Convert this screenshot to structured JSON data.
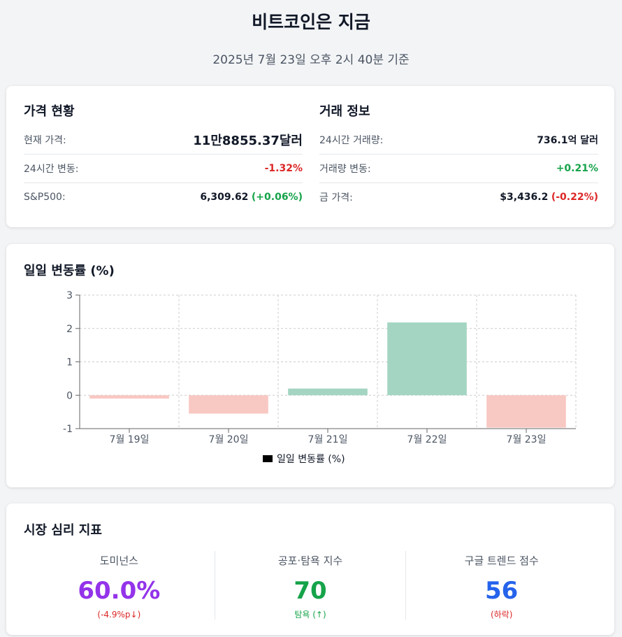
{
  "header": {
    "title": "비트코인은 지금",
    "subtitle": "2025년 7월 23일 오후 2시 40분 기준"
  },
  "price_status": {
    "title": "가격 현황",
    "rows": [
      {
        "label": "현재 가격:",
        "value": "11만8855.37달러"
      },
      {
        "label": "24시간 변동:",
        "value": "-1.32%"
      },
      {
        "label": "S&P500:",
        "value": "6,309.62",
        "change": "(+0.06%)"
      }
    ]
  },
  "trade_info": {
    "title": "거래 정보",
    "rows": [
      {
        "label": "24시간 거래량:",
        "value": "736.1억 달러"
      },
      {
        "label": "거래량 변동:",
        "value": "+0.21%"
      },
      {
        "label": "금 가격:",
        "value": "$3,436.2",
        "change": "(-0.22%)"
      }
    ]
  },
  "chart_section": {
    "title": "일일 변동률 (%)"
  },
  "chart_data": {
    "type": "bar",
    "categories": [
      "7월 19일",
      "7월 20일",
      "7월 21일",
      "7월 22일",
      "7월 23일"
    ],
    "series": [
      {
        "name": "일일 변동률 (%)",
        "values": [
          -0.1,
          -0.55,
          0.2,
          2.18,
          -0.97
        ]
      }
    ],
    "ylim": [
      -1,
      3
    ],
    "yticks": [
      -1,
      0,
      1,
      2,
      3
    ],
    "grid": true,
    "legend": "bottom",
    "colors": {
      "positive": "#a3d5c2",
      "negative": "#f8c8c3",
      "legend_swatch": "#000000"
    }
  },
  "sentiment": {
    "title": "시장 심리 지표",
    "metrics": [
      {
        "label": "도미넌스",
        "value": "60.0%",
        "sub": "(-4.9%p↓)",
        "color": "#9333ea",
        "sub_color": "#dc2626"
      },
      {
        "label": "공포·탐욕 지수",
        "value": "70",
        "sub": "탐욕 (↑)",
        "color": "#16a34a",
        "sub_color": "#16a34a"
      },
      {
        "label": "구글 트렌드 점수",
        "value": "56",
        "sub": "(하락)",
        "color": "#2563eb",
        "sub_color": "#dc2626"
      }
    ]
  }
}
